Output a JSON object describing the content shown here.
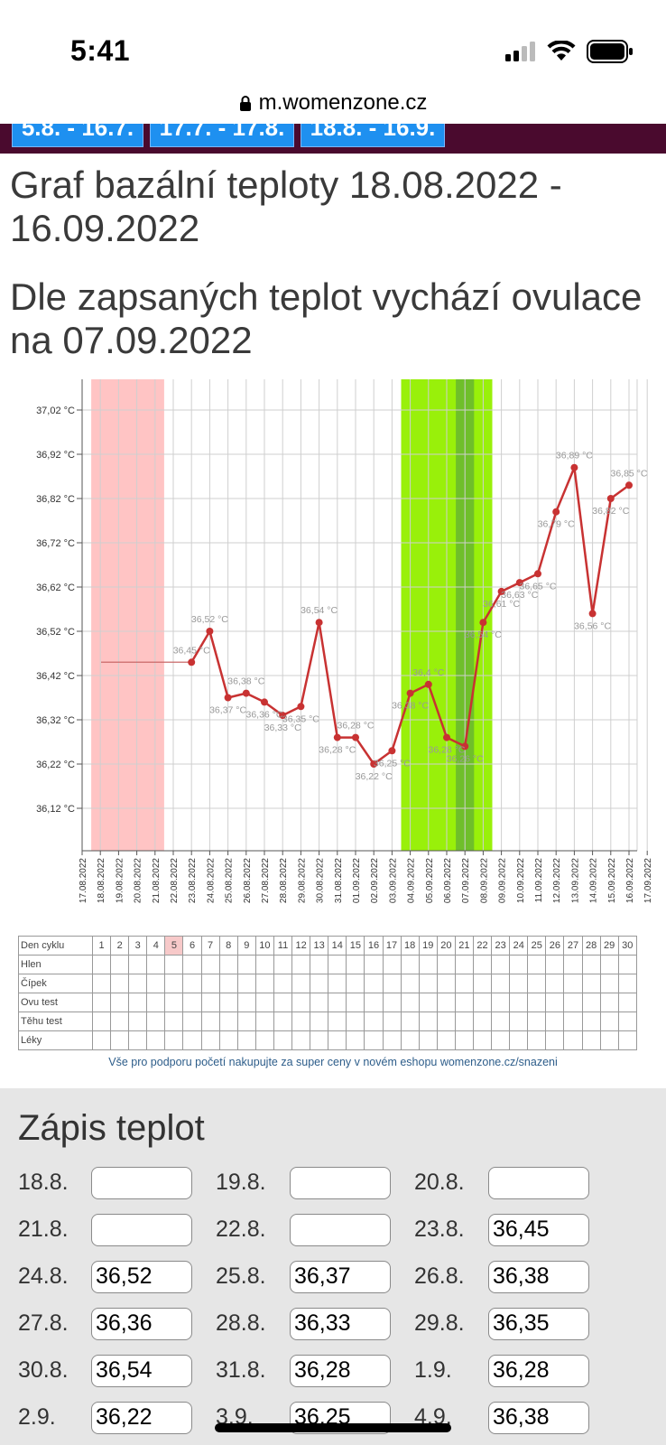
{
  "status": {
    "time": "5:41"
  },
  "browser": {
    "url": "m.womenzone.cz"
  },
  "menu": {
    "buttons": [
      "5.8. - 16.7.",
      "17.7. - 17.8.",
      "18.8. - 16.9."
    ]
  },
  "chart_heading": "Graf bazální teploty 18.08.2022 - 16.09.2022",
  "ovulation_heading": "Dle zapsaných teplot vychází ovulace na 07.09.2022",
  "chart_data": {
    "type": "line",
    "title": "",
    "ylabel": "",
    "xlabel": "",
    "ylim": [
      36.05,
      37.05
    ],
    "y_ticks": [
      "37,02 °C",
      "36,92 °C",
      "36,82 °C",
      "36,72 °C",
      "36,62 °C",
      "36,52 °C",
      "36,42 °C",
      "36,32 °C",
      "36,22 °C",
      "36,12 °C"
    ],
    "y_tick_values": [
      37.02,
      36.92,
      36.82,
      36.72,
      36.62,
      36.52,
      36.42,
      36.32,
      36.22,
      36.12
    ],
    "categories": [
      "17.08.2022",
      "18.08.2022",
      "19.08.2022",
      "20.08.2022",
      "21.08.2022",
      "22.08.2022",
      "23.08.2022",
      "24.08.2022",
      "25.08.2022",
      "26.08.2022",
      "27.08.2022",
      "28.08.2022",
      "29.08.2022",
      "30.08.2022",
      "31.08.2022",
      "01.09.2022",
      "02.09.2022",
      "03.09.2022",
      "04.09.2022",
      "05.09.2022",
      "06.09.2022",
      "07.09.2022",
      "08.09.2022",
      "09.09.2022",
      "10.09.2022",
      "11.09.2022",
      "12.09.2022",
      "13.09.2022",
      "14.09.2022",
      "15.09.2022",
      "16.09.2022",
      "17.09.2022"
    ],
    "baseline_value": 36.45,
    "series": [
      {
        "x": [
          "23.08.2022",
          "24.08.2022",
          "25.08.2022",
          "26.08.2022",
          "27.08.2022",
          "28.08.2022",
          "29.08.2022",
          "30.08.2022",
          "31.08.2022",
          "01.09.2022",
          "02.09.2022",
          "03.09.2022",
          "04.09.2022",
          "05.09.2022",
          "06.09.2022",
          "07.09.2022",
          "08.09.2022",
          "09.09.2022",
          "10.09.2022",
          "11.09.2022",
          "12.09.2022",
          "13.09.2022",
          "14.09.2022",
          "15.09.2022",
          "16.09.2022"
        ],
        "values": [
          36.45,
          36.52,
          36.37,
          36.38,
          36.36,
          36.33,
          36.35,
          36.54,
          36.28,
          36.28,
          36.22,
          36.25,
          36.38,
          36.4,
          36.28,
          36.26,
          36.54,
          36.61,
          36.63,
          36.65,
          36.79,
          36.89,
          36.56,
          36.82,
          36.85
        ],
        "labels": [
          "36,45 °C",
          "36,52 °C",
          "36,37 °C",
          "36,38 °C",
          "36,36 °C",
          "36,33 °C",
          "36,35 °C",
          "36,54 °C",
          "36,28 °C",
          "36,28 °C",
          "36,22 °C",
          "36,25 °C",
          "36,38 °C",
          "36,4 °C",
          "36,28 °C",
          "36,26 °C",
          "36,54 °C",
          "36,61 °C",
          "36,63 °C",
          "36,65 °C",
          "36,79 °C",
          "36,89 °C",
          "36,56 °C",
          "36,82 °C",
          "36,85 °C"
        ]
      }
    ],
    "bands": [
      {
        "from": "18.08.2022",
        "to": "21.08.2022",
        "meaning": "menstruation",
        "color": "#ffc4c4"
      },
      {
        "from": "04.09.2022",
        "to": "08.09.2022",
        "meaning": "fertile",
        "color": "#99f00a"
      },
      {
        "from": "07.09.2022",
        "to": "07.09.2022",
        "meaning": "ovulation",
        "color": "#6fbf2a"
      }
    ],
    "line_color": "#c83232",
    "grid": true
  },
  "cycle_table": {
    "row_headers": [
      "Den cyklu",
      "Hlen",
      "Čípek",
      "Ovu test",
      "Těhu test",
      "Léky"
    ],
    "days": [
      "1",
      "2",
      "3",
      "4",
      "5",
      "6",
      "7",
      "8",
      "9",
      "10",
      "11",
      "12",
      "13",
      "14",
      "15",
      "16",
      "17",
      "18",
      "19",
      "20",
      "21",
      "22",
      "23",
      "24",
      "25",
      "26",
      "27",
      "28",
      "29",
      "30"
    ],
    "highlighted_day": "5"
  },
  "promo_text": "Vše pro podporu početí nakupujte za super ceny v novém eshopu womenzone.cz/snazeni",
  "entry": {
    "title": "Zápis teplot",
    "rows": [
      [
        {
          "date": "18.8.",
          "value": ""
        },
        {
          "date": "19.8.",
          "value": ""
        },
        {
          "date": "20.8.",
          "value": ""
        }
      ],
      [
        {
          "date": "21.8.",
          "value": ""
        },
        {
          "date": "22.8.",
          "value": ""
        },
        {
          "date": "23.8.",
          "value": "36,45"
        }
      ],
      [
        {
          "date": "24.8.",
          "value": "36,52"
        },
        {
          "date": "25.8.",
          "value": "36,37"
        },
        {
          "date": "26.8.",
          "value": "36,38"
        }
      ],
      [
        {
          "date": "27.8.",
          "value": "36,36"
        },
        {
          "date": "28.8.",
          "value": "36,33"
        },
        {
          "date": "29.8.",
          "value": "36,35"
        }
      ],
      [
        {
          "date": "30.8.",
          "value": "36,54"
        },
        {
          "date": "31.8.",
          "value": "36,28"
        },
        {
          "date": "1.9.",
          "value": "36,28"
        }
      ],
      [
        {
          "date": "2.9.",
          "value": "36,22"
        },
        {
          "date": "3.9.",
          "value": "36,25"
        },
        {
          "date": "4.9.",
          "value": "36,38"
        }
      ]
    ]
  }
}
